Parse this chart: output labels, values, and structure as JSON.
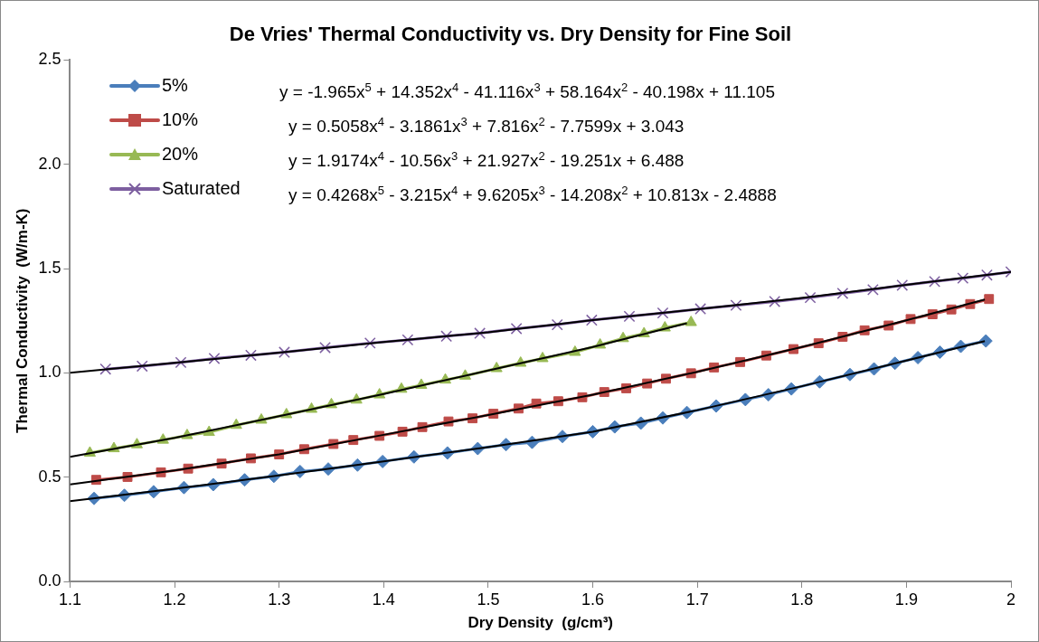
{
  "chart_data": {
    "type": "line",
    "title": "De Vries' Thermal Conductivity vs. Dry Density for Fine Soil",
    "xlabel": "Dry Density  (g/cm³)",
    "ylabel": "Thermal Conductivity  (W/m-K)",
    "xlim": [
      1.1,
      2.0
    ],
    "xticks": [
      1.1,
      1.2,
      1.3,
      1.4,
      1.5,
      1.6,
      1.7,
      1.8,
      1.9,
      2
    ],
    "ylim": [
      0,
      2.5
    ],
    "yticks": [
      {
        "value": 0,
        "label": "0.0"
      },
      {
        "value": 0.5,
        "label": "0.5"
      },
      {
        "value": 1,
        "label": "1.0"
      },
      {
        "value": 1.5,
        "label": "1.5"
      },
      {
        "value": 2,
        "label": "2.0"
      },
      {
        "value": 2.5,
        "label": "2.5"
      }
    ],
    "legend": "top left",
    "annotations": [
      "y = -1.965x$^{5}$ + 14.352x$^{4}$  - 41.116x$^{3}$ + 58.164x$^{2}$ - 40.198x  + 11.105",
      "y = 0.5058x$^{4}$ - 3.1861x$^{3}$ + 7.816x$^{2}$ - 7.7599x  + 3.043",
      "y = 1.9174x$^{4}$ - 10.56x$^{3}$ + 21.927x$^{2}$ - 19.251x  + 6.488",
      "y = 0.4268x$^{5}$ - 3.215x$^{4}$ + 9.6205x$^{3}$ - 14.208x$^{2}$ + 10.813x  - 2.4888"
    ],
    "series": [
      {
        "name": "5%",
        "color": "#4a7ebb",
        "marker": "diamond",
        "x": [
          1.123,
          1.152,
          1.18,
          1.209,
          1.237,
          1.267,
          1.295,
          1.32,
          1.347,
          1.375,
          1.399,
          1.429,
          1.461,
          1.49,
          1.517,
          1.542,
          1.571,
          1.6,
          1.621,
          1.646,
          1.667,
          1.69,
          1.718,
          1.746,
          1.768,
          1.79,
          1.817,
          1.846,
          1.869,
          1.889,
          1.911,
          1.932,
          1.952,
          1.976
        ],
        "values": [
          0.398,
          0.413,
          0.43,
          0.45,
          0.464,
          0.487,
          0.504,
          0.527,
          0.539,
          0.558,
          0.575,
          0.597,
          0.616,
          0.637,
          0.656,
          0.667,
          0.695,
          0.718,
          0.741,
          0.759,
          0.784,
          0.81,
          0.841,
          0.872,
          0.895,
          0.923,
          0.957,
          0.992,
          1.019,
          1.046,
          1.073,
          1.099,
          1.127,
          1.153
        ]
      },
      {
        "name": "10%",
        "color": "#be4b48",
        "marker": "square",
        "x": [
          1.125,
          1.155,
          1.187,
          1.213,
          1.245,
          1.273,
          1.3,
          1.324,
          1.352,
          1.371,
          1.396,
          1.418,
          1.437,
          1.462,
          1.485,
          1.505,
          1.529,
          1.546,
          1.567,
          1.59,
          1.611,
          1.632,
          1.652,
          1.67,
          1.694,
          1.716,
          1.741,
          1.766,
          1.792,
          1.816,
          1.839,
          1.86,
          1.883,
          1.904,
          1.925,
          1.943,
          1.961,
          1.979
        ],
        "values": [
          0.487,
          0.501,
          0.523,
          0.541,
          0.565,
          0.59,
          0.609,
          0.634,
          0.659,
          0.678,
          0.698,
          0.718,
          0.74,
          0.767,
          0.782,
          0.804,
          0.829,
          0.853,
          0.864,
          0.883,
          0.908,
          0.926,
          0.949,
          0.972,
          0.998,
          1.026,
          1.052,
          1.083,
          1.114,
          1.142,
          1.173,
          1.204,
          1.227,
          1.258,
          1.281,
          1.304,
          1.33,
          1.354
        ]
      },
      {
        "name": "20%",
        "color": "#98b954",
        "marker": "triangle",
        "x": [
          1.119,
          1.142,
          1.164,
          1.189,
          1.212,
          1.233,
          1.259,
          1.283,
          1.307,
          1.331,
          1.35,
          1.374,
          1.396,
          1.417,
          1.436,
          1.459,
          1.478,
          1.508,
          1.531,
          1.552,
          1.583,
          1.607,
          1.629,
          1.649,
          1.669,
          1.694
        ],
        "values": [
          0.616,
          0.637,
          0.656,
          0.678,
          0.7,
          0.715,
          0.749,
          0.774,
          0.8,
          0.826,
          0.848,
          0.87,
          0.895,
          0.922,
          0.941,
          0.966,
          0.985,
          1.021,
          1.047,
          1.069,
          1.099,
          1.134,
          1.165,
          1.188,
          1.216,
          1.242
        ]
      },
      {
        "name": "Saturated",
        "color": "#7d5fa0",
        "marker": "cross",
        "x": [
          1.134,
          1.169,
          1.206,
          1.238,
          1.273,
          1.305,
          1.344,
          1.387,
          1.423,
          1.46,
          1.492,
          1.527,
          1.566,
          1.599,
          1.635,
          1.667,
          1.703,
          1.737,
          1.774,
          1.808,
          1.839,
          1.868,
          1.896,
          1.927,
          1.954,
          1.977,
          2.0
        ],
        "values": [
          1.018,
          1.032,
          1.05,
          1.069,
          1.084,
          1.099,
          1.121,
          1.143,
          1.158,
          1.176,
          1.19,
          1.212,
          1.231,
          1.253,
          1.271,
          1.287,
          1.307,
          1.324,
          1.342,
          1.361,
          1.381,
          1.399,
          1.42,
          1.438,
          1.454,
          1.469,
          1.484
        ]
      },
      {
        "type": "line",
        "color": "#000000",
        "marker": "none",
        "x": [
          1.1,
          1.2,
          1.3,
          1.4,
          1.5,
          1.6,
          1.7,
          1.8,
          1.9,
          1.975
        ],
        "values": [
          0.385,
          0.444,
          0.508,
          0.576,
          0.644,
          0.718,
          0.821,
          0.936,
          1.059,
          1.152
        ]
      },
      {
        "type": "line",
        "color": "#000000",
        "marker": "none",
        "x": [
          1.1,
          1.2,
          1.3,
          1.4,
          1.5,
          1.6,
          1.7,
          1.8,
          1.9,
          1.975
        ],
        "values": [
          0.465,
          0.532,
          0.609,
          0.703,
          0.798,
          0.895,
          1.005,
          1.124,
          1.252,
          1.352
        ]
      },
      {
        "type": "line",
        "color": "#000000",
        "marker": "none",
        "x": [
          1.1,
          1.2,
          1.3,
          1.4,
          1.5,
          1.6,
          1.69
        ],
        "values": [
          0.597,
          0.688,
          0.792,
          0.899,
          1.011,
          1.124,
          1.238
        ]
      },
      {
        "type": "line",
        "color": "#000000",
        "marker": "none",
        "x": [
          1.1,
          1.2,
          1.3,
          1.4,
          1.5,
          1.6,
          1.7,
          1.8,
          1.9,
          2.0
        ],
        "values": [
          1.0,
          1.048,
          1.097,
          1.148,
          1.194,
          1.253,
          1.305,
          1.359,
          1.422,
          1.484
        ]
      }
    ]
  }
}
